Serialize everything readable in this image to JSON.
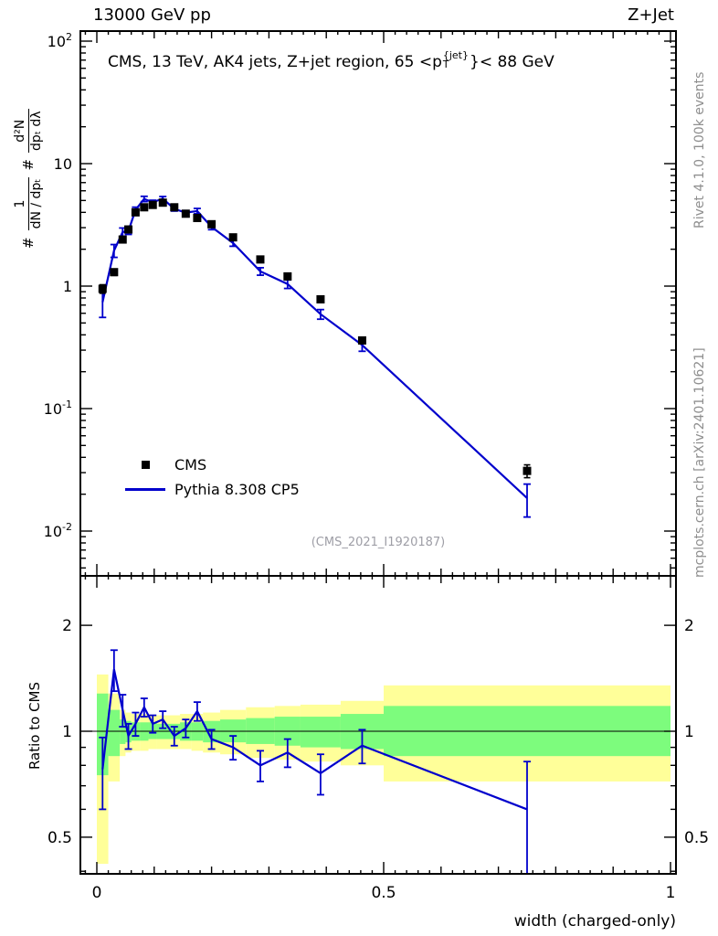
{
  "header": {
    "left": "13000 GeV pp",
    "right": "Z+Jet"
  },
  "title": {
    "pre": "CMS, 13 TeV, AK4 jets, Z+jet region, 65 <p",
    "sup": "{jet}",
    "sub": "T",
    "post": "}< 88 GeV"
  },
  "watermark": "(CMS_2021_I1920187)",
  "side_notes": {
    "top_right": "Rivet 4.1.0, 100k events",
    "bottom_right": "mcplots.cern.ch [arXiv:2401.10621]"
  },
  "legend": [
    {
      "label": "CMS",
      "marker": "square",
      "color": "#000000"
    },
    {
      "label": "Pythia 8.308 CP5",
      "marker": "line",
      "color": "#0000cc"
    }
  ],
  "axes": {
    "x": {
      "label": "width (charged-only)",
      "range": [
        -0.029,
        1.01
      ],
      "tick_items": [
        {
          "v": 0,
          "label": "0"
        },
        {
          "v": 0.5,
          "label": "0.5"
        },
        {
          "v": 1,
          "label": "1"
        }
      ]
    },
    "y_main": {
      "scale": "log",
      "range": [
        0.0043,
        120
      ],
      "label_parts": {
        "h1": "#",
        "num1": "1",
        "den1": "dN / dpₜ",
        "h2": "#",
        "num2": "d²N",
        "den2": "dpₜ dλ"
      },
      "tick_items": [
        {
          "v": 100,
          "base": "10",
          "exp": "2"
        },
        {
          "v": 10,
          "base": "10",
          "exp": ""
        },
        {
          "v": 1,
          "base": "1",
          "exp": ""
        },
        {
          "v": 0.1,
          "base": "10",
          "exp": "-1"
        },
        {
          "v": 0.01,
          "base": "10",
          "exp": "-2"
        }
      ]
    },
    "y_ratio": {
      "label": "Ratio to CMS",
      "scale": "log",
      "range": [
        0.39,
        2.77
      ],
      "tick_items": [
        {
          "v": 2,
          "label": "2"
        },
        {
          "v": 1,
          "label": "1"
        },
        {
          "v": 0.5,
          "label": "0.5"
        }
      ]
    }
  },
  "chart_data": {
    "type": "line",
    "title": "CMS, 13 TeV, AK4 jets, Z+jet region, 65 <p^{jet}_T < 88 GeV",
    "xlabel": "width (charged-only)",
    "ylabel": "1/(dN/dp_T) d^2N/(dp_T dlambda)",
    "x_range": [
      -0.029,
      1.01
    ],
    "y_main_range": [
      0.0043,
      120
    ],
    "y_ratio_range": [
      0.39,
      2.77
    ],
    "bin_edges": [
      0,
      0.02,
      0.04,
      0.05,
      0.06,
      0.075,
      0.09,
      0.105,
      0.125,
      0.145,
      0.165,
      0.185,
      0.215,
      0.26,
      0.31,
      0.355,
      0.425,
      0.5,
      1.0
    ],
    "x": [
      0.01,
      0.03,
      0.045,
      0.055,
      0.0675,
      0.0825,
      0.0975,
      0.115,
      0.135,
      0.155,
      0.175,
      0.2,
      0.2375,
      0.285,
      0.3325,
      0.39,
      0.4625,
      0.75
    ],
    "series": [
      {
        "name": "CMS",
        "style": "scatter-square",
        "color": "#000000",
        "values": [
          0.95,
          1.3,
          2.4,
          2.9,
          4.0,
          4.4,
          4.6,
          4.8,
          4.4,
          3.9,
          3.6,
          3.2,
          2.5,
          1.65,
          1.2,
          0.78,
          0.36,
          0.031
        ],
        "err_frac": [
          0.08,
          0.06,
          0.05,
          0.04,
          0.04,
          0.04,
          0.03,
          0.03,
          0.03,
          0.03,
          0.03,
          0.03,
          0.04,
          0.04,
          0.05,
          0.05,
          0.06,
          0.12
        ]
      },
      {
        "name": "Pythia 8.308 CP5",
        "style": "line",
        "color": "#0000cc",
        "values": [
          0.74,
          1.95,
          2.76,
          2.81,
          4.2,
          5.15,
          4.83,
          5.18,
          4.27,
          3.98,
          4.1,
          3.04,
          2.25,
          1.32,
          1.04,
          0.59,
          0.33,
          0.0186
        ],
        "err_frac": [
          0.25,
          0.12,
          0.08,
          0.06,
          0.05,
          0.05,
          0.04,
          0.04,
          0.04,
          0.04,
          0.05,
          0.05,
          0.06,
          0.07,
          0.08,
          0.09,
          0.11,
          0.3
        ]
      }
    ],
    "ratio": {
      "name": "Pythia 8.308 CP5 / CMS",
      "color": "#0000cc",
      "values": [
        0.78,
        1.5,
        1.15,
        0.97,
        1.05,
        1.17,
        1.05,
        1.08,
        0.97,
        1.02,
        1.14,
        0.95,
        0.9,
        0.8,
        0.87,
        0.76,
        0.91,
        0.6
      ],
      "err": [
        0.18,
        0.2,
        0.12,
        0.08,
        0.08,
        0.07,
        0.06,
        0.06,
        0.06,
        0.06,
        0.07,
        0.06,
        0.07,
        0.08,
        0.08,
        0.1,
        0.1,
        0.22
      ],
      "reference_line": 1,
      "bands": {
        "yellow": {
          "color": "#ffff99",
          "lo": [
            0.42,
            0.72,
            0.85,
            0.87,
            0.88,
            0.88,
            0.89,
            0.89,
            0.89,
            0.89,
            0.88,
            0.87,
            0.86,
            0.84,
            0.83,
            0.82,
            0.8,
            0.72
          ],
          "hi": [
            1.45,
            1.28,
            1.15,
            1.13,
            1.12,
            1.12,
            1.11,
            1.11,
            1.11,
            1.12,
            1.12,
            1.13,
            1.15,
            1.17,
            1.18,
            1.19,
            1.22,
            1.35
          ]
        },
        "green": {
          "color": "#7dfc7d",
          "lo": [
            0.75,
            0.85,
            0.92,
            0.93,
            0.94,
            0.94,
            0.95,
            0.95,
            0.95,
            0.94,
            0.94,
            0.93,
            0.93,
            0.92,
            0.91,
            0.9,
            0.89,
            0.85
          ],
          "hi": [
            1.28,
            1.15,
            1.08,
            1.07,
            1.06,
            1.06,
            1.06,
            1.05,
            1.05,
            1.06,
            1.06,
            1.07,
            1.08,
            1.09,
            1.1,
            1.1,
            1.12,
            1.18
          ]
        }
      }
    },
    "legend_position": "left-middle",
    "grid": false
  }
}
